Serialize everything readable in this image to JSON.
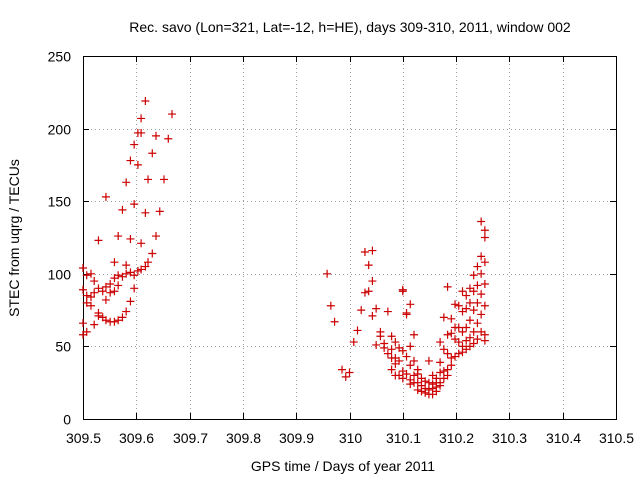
{
  "chart_data": {
    "type": "scatter",
    "title": "Rec. savo (Lon=321, Lat=-12, h=HE), days 309-310, 2011, window 002",
    "xlabel": "GPS time / Days of year 2011",
    "ylabel": "STEC from uqrg / TECUs",
    "xlim": [
      309.5,
      310.5
    ],
    "ylim": [
      0,
      250
    ],
    "xticks": [
      309.5,
      309.6,
      309.7,
      309.8,
      309.9,
      310.0,
      310.1,
      310.2,
      310.3,
      310.4,
      310.5
    ],
    "xtick_labels": [
      "309.5",
      "309.6",
      "309.7",
      "309.8",
      "309.9",
      "310",
      "310.1",
      "310.2",
      "310.3",
      "310.4",
      "310.5"
    ],
    "yticks": [
      0,
      50,
      100,
      150,
      200,
      250
    ],
    "ytick_labels": [
      "0",
      "50",
      "100",
      "150",
      "200",
      "250"
    ],
    "grid": true,
    "marker": "+",
    "color": "#cc0000",
    "series": [
      {
        "name": "STEC",
        "points": [
          [
            309.5,
            104
          ],
          [
            309.5,
            89
          ],
          [
            309.5,
            66
          ],
          [
            309.5,
            58
          ],
          [
            309.507,
            99
          ],
          [
            309.507,
            85
          ],
          [
            309.507,
            80
          ],
          [
            309.507,
            60
          ],
          [
            309.515,
            100
          ],
          [
            309.515,
            84
          ],
          [
            309.515,
            78
          ],
          [
            309.521,
            95
          ],
          [
            309.521,
            87
          ],
          [
            309.521,
            65
          ],
          [
            309.529,
            123
          ],
          [
            309.529,
            90
          ],
          [
            309.529,
            73
          ],
          [
            309.529,
            71
          ],
          [
            309.537,
            88
          ],
          [
            309.537,
            70
          ],
          [
            309.543,
            153
          ],
          [
            309.543,
            91
          ],
          [
            309.543,
            82
          ],
          [
            309.543,
            68
          ],
          [
            309.551,
            93
          ],
          [
            309.551,
            87
          ],
          [
            309.551,
            67
          ],
          [
            309.559,
            108
          ],
          [
            309.559,
            97
          ],
          [
            309.559,
            88
          ],
          [
            309.559,
            67
          ],
          [
            309.566,
            126
          ],
          [
            309.566,
            92
          ],
          [
            309.566,
            99
          ],
          [
            309.566,
            68
          ],
          [
            309.574,
            144
          ],
          [
            309.574,
            98
          ],
          [
            309.574,
            70
          ],
          [
            309.581,
            163
          ],
          [
            309.581,
            106
          ],
          [
            309.581,
            100
          ],
          [
            309.581,
            74
          ],
          [
            309.589,
            178
          ],
          [
            309.589,
            124
          ],
          [
            309.589,
            101
          ],
          [
            309.589,
            81
          ],
          [
            309.596,
            189
          ],
          [
            309.596,
            148
          ],
          [
            309.596,
            99
          ],
          [
            309.596,
            90
          ],
          [
            309.603,
            197
          ],
          [
            309.603,
            175
          ],
          [
            309.603,
            102
          ],
          [
            309.609,
            207
          ],
          [
            309.609,
            197
          ],
          [
            309.609,
            121
          ],
          [
            309.609,
            103
          ],
          [
            309.617,
            219
          ],
          [
            309.617,
            142
          ],
          [
            309.617,
            105
          ],
          [
            309.622,
            165
          ],
          [
            309.622,
            108
          ],
          [
            309.63,
            183
          ],
          [
            309.63,
            114
          ],
          [
            309.637,
            195
          ],
          [
            309.637,
            126
          ],
          [
            309.644,
            143
          ],
          [
            309.652,
            165
          ],
          [
            309.66,
            193
          ],
          [
            309.667,
            210
          ],
          [
            309.958,
            100
          ],
          [
            309.965,
            78
          ],
          [
            309.972,
            67
          ],
          [
            309.986,
            34
          ],
          [
            309.993,
            29
          ],
          [
            310.0,
            32
          ],
          [
            310.008,
            53
          ],
          [
            310.015,
            61
          ],
          [
            310.022,
            75
          ],
          [
            310.029,
            115
          ],
          [
            310.029,
            87
          ],
          [
            310.036,
            106
          ],
          [
            310.036,
            88
          ],
          [
            310.043,
            116
          ],
          [
            310.043,
            95
          ],
          [
            310.043,
            71
          ],
          [
            310.05,
            76
          ],
          [
            310.05,
            51
          ],
          [
            310.058,
            60
          ],
          [
            310.058,
            57
          ],
          [
            310.065,
            52
          ],
          [
            310.065,
            49
          ],
          [
            310.072,
            74
          ],
          [
            310.072,
            45
          ],
          [
            310.079,
            57
          ],
          [
            310.079,
            48
          ],
          [
            310.079,
            42
          ],
          [
            310.079,
            34
          ],
          [
            310.086,
            53
          ],
          [
            310.086,
            42
          ],
          [
            310.086,
            38
          ],
          [
            310.086,
            30
          ],
          [
            310.093,
            49
          ],
          [
            310.093,
            40
          ],
          [
            310.093,
            30
          ],
          [
            310.1,
            89
          ],
          [
            310.1,
            88
          ],
          [
            310.1,
            47
          ],
          [
            310.1,
            33
          ],
          [
            310.1,
            28
          ],
          [
            310.107,
            73
          ],
          [
            310.107,
            72
          ],
          [
            310.107,
            43
          ],
          [
            310.107,
            31
          ],
          [
            310.114,
            79
          ],
          [
            310.114,
            50
          ],
          [
            310.114,
            37
          ],
          [
            310.114,
            27
          ],
          [
            310.114,
            24
          ],
          [
            310.121,
            58
          ],
          [
            310.121,
            40
          ],
          [
            310.121,
            30
          ],
          [
            310.121,
            25
          ],
          [
            310.128,
            34
          ],
          [
            310.128,
            31
          ],
          [
            310.128,
            25
          ],
          [
            310.128,
            20
          ],
          [
            310.135,
            28
          ],
          [
            310.135,
            23
          ],
          [
            310.135,
            19
          ],
          [
            310.142,
            26
          ],
          [
            310.142,
            21
          ],
          [
            310.142,
            18
          ],
          [
            310.149,
            40
          ],
          [
            310.149,
            25
          ],
          [
            310.149,
            20
          ],
          [
            310.149,
            17
          ],
          [
            310.156,
            30
          ],
          [
            310.156,
            24
          ],
          [
            310.156,
            21
          ],
          [
            310.156,
            17
          ],
          [
            310.163,
            28
          ],
          [
            310.163,
            25
          ],
          [
            310.163,
            22
          ],
          [
            310.163,
            19
          ],
          [
            310.17,
            53
          ],
          [
            310.17,
            39
          ],
          [
            310.17,
            32
          ],
          [
            310.17,
            25
          ],
          [
            310.17,
            23
          ],
          [
            310.177,
            70
          ],
          [
            310.177,
            48
          ],
          [
            310.177,
            33
          ],
          [
            310.177,
            28
          ],
          [
            310.184,
            91
          ],
          [
            310.184,
            58
          ],
          [
            310.184,
            45
          ],
          [
            310.184,
            34
          ],
          [
            310.184,
            30
          ],
          [
            310.191,
            69
          ],
          [
            310.191,
            59
          ],
          [
            310.191,
            42
          ],
          [
            310.191,
            37
          ],
          [
            310.198,
            79
          ],
          [
            310.198,
            63
          ],
          [
            310.198,
            55
          ],
          [
            310.198,
            43
          ],
          [
            310.205,
            78
          ],
          [
            310.205,
            63
          ],
          [
            310.205,
            53
          ],
          [
            310.205,
            45
          ],
          [
            310.212,
            88
          ],
          [
            310.212,
            74
          ],
          [
            310.212,
            60
          ],
          [
            310.212,
            50
          ],
          [
            310.212,
            46
          ],
          [
            310.219,
            85
          ],
          [
            310.219,
            76
          ],
          [
            310.219,
            63
          ],
          [
            310.219,
            54
          ],
          [
            310.219,
            48
          ],
          [
            310.226,
            90
          ],
          [
            310.226,
            80
          ],
          [
            310.226,
            68
          ],
          [
            310.226,
            56
          ],
          [
            310.226,
            50
          ],
          [
            310.233,
            99
          ],
          [
            310.233,
            88
          ],
          [
            310.233,
            75
          ],
          [
            310.233,
            60
          ],
          [
            310.233,
            52
          ],
          [
            310.24,
            105
          ],
          [
            310.24,
            92
          ],
          [
            310.24,
            80
          ],
          [
            310.24,
            66
          ],
          [
            310.24,
            55
          ],
          [
            310.247,
            136
          ],
          [
            310.247,
            112
          ],
          [
            310.247,
            100
          ],
          [
            310.247,
            86
          ],
          [
            310.247,
            72
          ],
          [
            310.247,
            60
          ],
          [
            310.254,
            130
          ],
          [
            310.254,
            125
          ],
          [
            310.254,
            108
          ],
          [
            310.254,
            93
          ],
          [
            310.254,
            78
          ],
          [
            310.254,
            58
          ],
          [
            310.254,
            54
          ]
        ]
      }
    ]
  }
}
